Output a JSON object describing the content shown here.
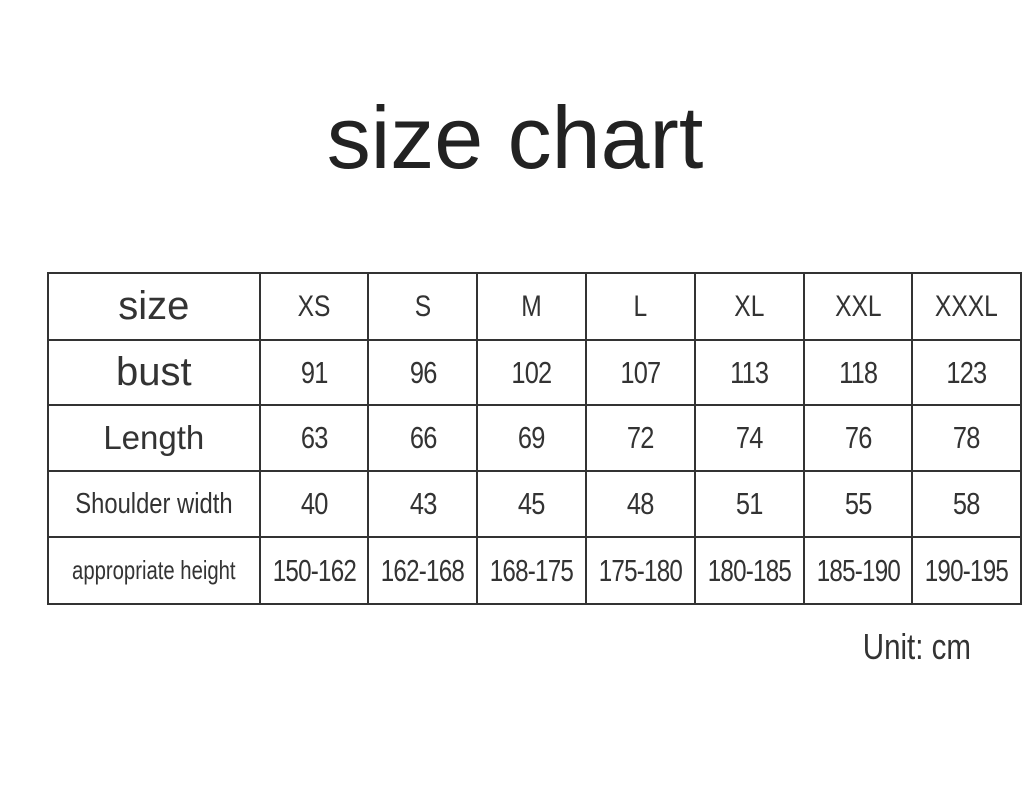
{
  "title": "size chart",
  "unit": "Unit: cm",
  "table": {
    "headers": [
      "size",
      "XS",
      "S",
      "M",
      "L",
      "XL",
      "XXL",
      "XXXL"
    ],
    "rows": [
      {
        "label": "bust",
        "values": [
          "91",
          "96",
          "102",
          "107",
          "113",
          "118",
          "123"
        ]
      },
      {
        "label": "Length",
        "values": [
          "63",
          "66",
          "69",
          "72",
          "74",
          "76",
          "78"
        ]
      },
      {
        "label": "Shoulder width",
        "values": [
          "40",
          "43",
          "45",
          "48",
          "51",
          "55",
          "58"
        ]
      },
      {
        "label": "appropriate height",
        "values": [
          "150-162",
          "162-168",
          "168-175",
          "175-180",
          "180-185",
          "185-190",
          "190-195"
        ]
      }
    ]
  }
}
